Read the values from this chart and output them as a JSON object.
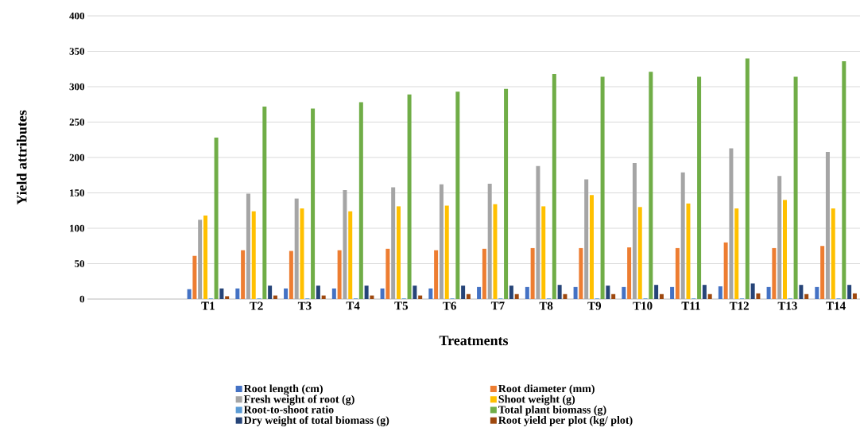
{
  "chart_data": {
    "type": "bar",
    "xlabel": "Treatments",
    "ylabel": "Yield  attributes",
    "categories": [
      null,
      null,
      "T1",
      "T2",
      "T3",
      "T4",
      "T5",
      "T6",
      "T7",
      "T8",
      "T9",
      "T10",
      "T11",
      "T12",
      "T13",
      "T14"
    ],
    "series": [
      {
        "name": "Root length (cm)",
        "color": "#4472c4",
        "values": [
          null,
          null,
          14,
          15,
          15,
          15,
          15,
          15,
          17,
          17,
          17,
          17,
          17,
          18,
          17,
          17
        ]
      },
      {
        "name": "Root diameter (mm)",
        "color": "#ed7d31",
        "values": [
          null,
          null,
          61,
          69,
          68,
          69,
          71,
          69,
          71,
          72,
          72,
          73,
          72,
          80,
          72,
          75
        ]
      },
      {
        "name": "Fresh weight of root (g)",
        "color": "#a5a5a5",
        "values": [
          null,
          null,
          112,
          149,
          142,
          154,
          158,
          162,
          163,
          188,
          169,
          192,
          179,
          213,
          174,
          208
        ]
      },
      {
        "name": "Shoot weight (g)",
        "color": "#ffc000",
        "values": [
          null,
          null,
          118,
          124,
          128,
          124,
          131,
          132,
          134,
          131,
          147,
          130,
          135,
          128,
          140,
          128
        ]
      },
      {
        "name": "Root-to-shoot ratio",
        "color": "#5b9bd5",
        "values": [
          null,
          null,
          1,
          1,
          1,
          1,
          1,
          1,
          1,
          1,
          1,
          1,
          1,
          1,
          1,
          1
        ]
      },
      {
        "name": "Total plant biomass (g)",
        "color": "#70ad47",
        "values": [
          null,
          null,
          228,
          272,
          269,
          278,
          289,
          293,
          297,
          318,
          314,
          321,
          314,
          340,
          314,
          336
        ]
      },
      {
        "name": "Dry weight of total biomass (g)",
        "color": "#264478",
        "values": [
          null,
          null,
          15,
          19,
          19,
          19,
          19,
          19,
          19,
          20,
          19,
          20,
          20,
          22,
          20,
          20
        ]
      },
      {
        "name": "Root yield per plot (kg/ plot)",
        "color": "#9e480e",
        "values": [
          null,
          null,
          4,
          5,
          5,
          5,
          5,
          7,
          7,
          7,
          7,
          7,
          7,
          8,
          7,
          8
        ]
      }
    ],
    "ylim": [
      0,
      400
    ],
    "yticks": [
      0,
      50,
      100,
      150,
      200,
      250,
      300,
      350,
      400
    ],
    "grid": "y",
    "legend": "bottom"
  }
}
